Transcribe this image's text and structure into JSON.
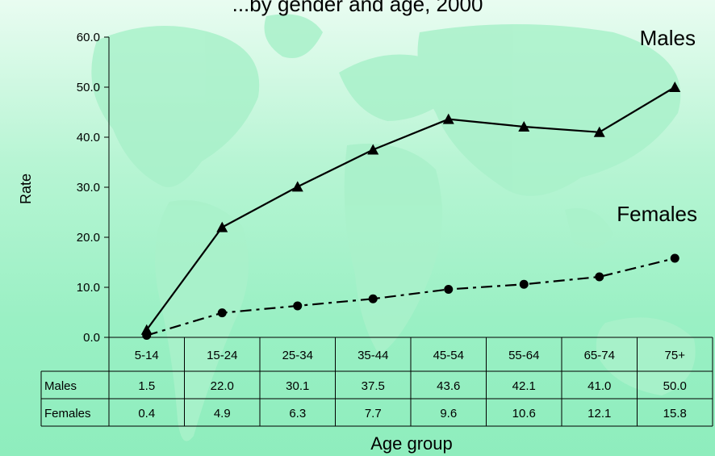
{
  "chart_data": {
    "type": "line",
    "title": "...by gender and age, 2000",
    "xlabel": "Age group",
    "ylabel": "Rate",
    "ylim": [
      0,
      60
    ],
    "y_ticks": [
      "0.0",
      "10.0",
      "20.0",
      "30.0",
      "40.0",
      "50.0",
      "60.0"
    ],
    "categories": [
      "5-14",
      "15-24",
      "25-34",
      "35-44",
      "45-54",
      "55-64",
      "65-74",
      "75+"
    ],
    "series": [
      {
        "name": "Males",
        "values": [
          1.5,
          22.0,
          30.1,
          37.5,
          43.6,
          42.1,
          41.0,
          50.0
        ],
        "labels": [
          "1.5",
          "22.0",
          "30.1",
          "37.5",
          "43.6",
          "42.1",
          "41.0",
          "50.0"
        ],
        "marker": "triangle",
        "line_style": "solid"
      },
      {
        "name": "Females",
        "values": [
          0.4,
          4.9,
          6.3,
          7.7,
          9.6,
          10.6,
          12.1,
          15.8
        ],
        "labels": [
          "0.4",
          "4.9",
          "6.3",
          "7.7",
          "9.6",
          "10.6",
          "12.1",
          "15.8"
        ],
        "marker": "circle",
        "line_style": "dash-dot"
      }
    ],
    "annotations": [
      "Males",
      "Females"
    ],
    "data_table": true,
    "grid": false
  },
  "colors": {
    "line": "#000000",
    "background_light": "#e9fcf1",
    "background_dark": "#8eedbd",
    "map": "#a8f0c8"
  }
}
